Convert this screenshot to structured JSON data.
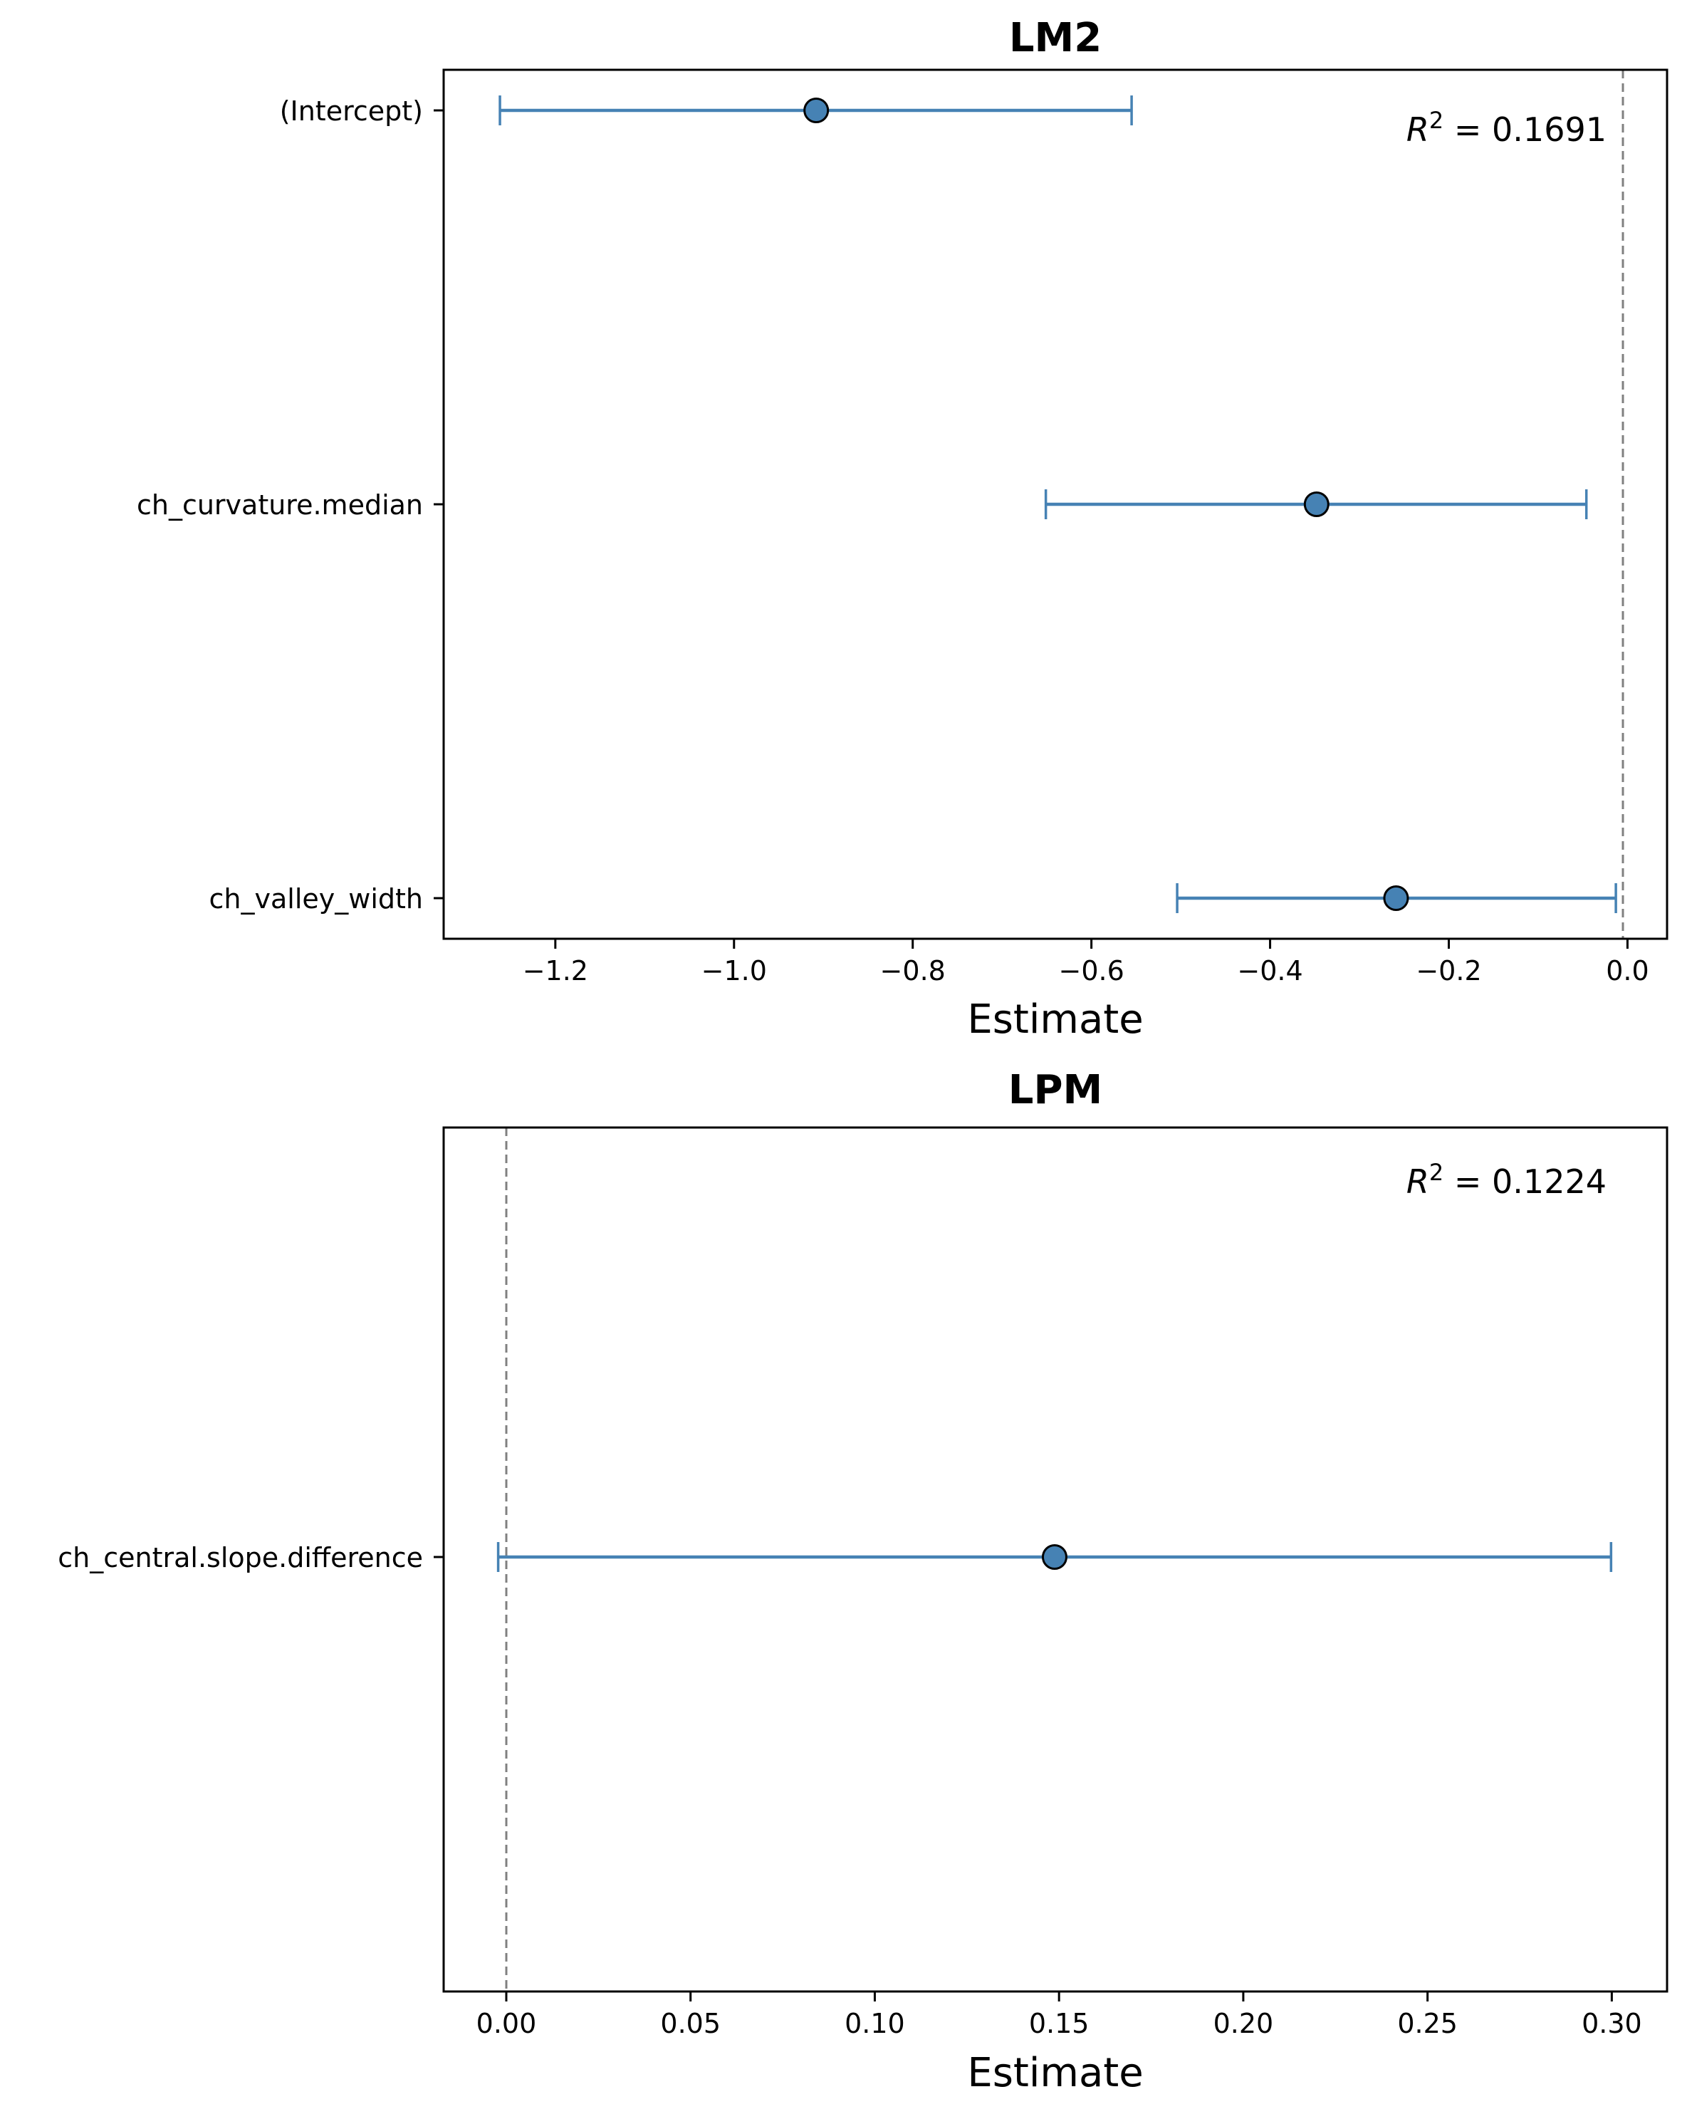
{
  "colors": {
    "point_fill": "#4682b4",
    "errorbar": "#4682b4",
    "point_edge": "#000000",
    "zero_line": "#808080"
  },
  "chart_data": [
    {
      "type": "scatter",
      "subtype": "coefficient-errorbar",
      "title": "LM2",
      "xlabel": "Estimate",
      "ylabel": "",
      "xlim": [
        -1.325,
        0.0443
      ],
      "xticks": [
        -1.2,
        -1.0,
        -0.8,
        -0.6,
        -0.4,
        -0.2,
        0.0
      ],
      "xtick_labels": [
        "−1.2",
        "−1.0",
        "−0.8",
        "−0.6",
        "−0.4",
        "−0.2",
        "0.0"
      ],
      "grid": false,
      "reference_line_x": 0,
      "annotation": {
        "r2_prefix": "R",
        "r2_exponent": "2",
        "r2_value": " = 0.1691"
      },
      "terms": [
        {
          "name": "(Intercept)",
          "estimate": -0.908,
          "lower": -1.262,
          "upper": -0.555
        },
        {
          "name": "ch_curvature.median",
          "estimate": -0.348,
          "lower": -0.651,
          "upper": -0.046
        },
        {
          "name": "ch_valley_width",
          "estimate": -0.259,
          "lower": -0.504,
          "upper": -0.013
        }
      ]
    },
    {
      "type": "scatter",
      "subtype": "coefficient-errorbar",
      "title": "LPM",
      "xlabel": "Estimate",
      "ylabel": "",
      "xlim": [
        -0.017,
        0.315
      ],
      "xticks": [
        0.0,
        0.05,
        0.1,
        0.15,
        0.2,
        0.25,
        0.3
      ],
      "xtick_labels": [
        "0.00",
        "0.05",
        "0.10",
        "0.15",
        "0.20",
        "0.25",
        "0.30"
      ],
      "grid": false,
      "reference_line_x": 0,
      "annotation": {
        "r2_prefix": "R",
        "r2_exponent": "2",
        "r2_value": " = 0.1224"
      },
      "terms": [
        {
          "name": "ch_central.slope.difference",
          "estimate": 0.1488,
          "lower": -0.0022,
          "upper": 0.2998
        }
      ]
    }
  ]
}
